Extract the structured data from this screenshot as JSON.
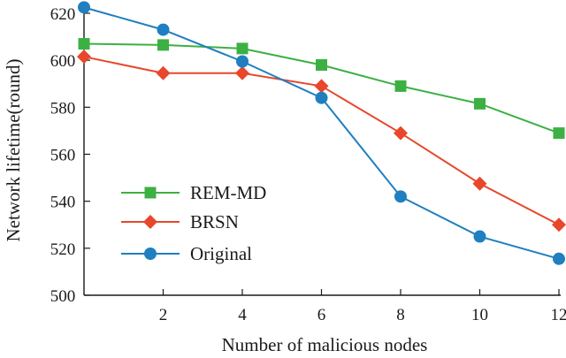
{
  "chart_data": {
    "type": "line",
    "xlabel": "Number of malicious nodes",
    "ylabel": "Network lifetime(round)",
    "xlim": [
      0,
      13
    ],
    "ylim": [
      500,
      620
    ],
    "xticks": [
      2,
      4,
      6,
      8,
      10,
      12
    ],
    "yticks": [
      500,
      520,
      540,
      560,
      580,
      600,
      620
    ],
    "legend_position": "lower-left",
    "grid": false,
    "series": [
      {
        "name": "REM-MD",
        "color": "#3cb043",
        "marker": "square",
        "x": [
          0,
          2,
          4,
          6,
          8,
          10,
          12
        ],
        "y": [
          607,
          606.5,
          605,
          598,
          589,
          581.5,
          569
        ]
      },
      {
        "name": "BRSN",
        "color": "#e8472b",
        "marker": "diamond",
        "x": [
          0,
          2,
          4,
          6,
          8,
          10,
          12
        ],
        "y": [
          601.5,
          594.5,
          594.5,
          589,
          569,
          547.5,
          530
        ]
      },
      {
        "name": "Original",
        "color": "#1f7fc0",
        "marker": "circle",
        "x": [
          0,
          2,
          4,
          6,
          8,
          10,
          12
        ],
        "y": [
          622.5,
          613,
          599.5,
          584,
          542,
          525,
          515.5
        ]
      }
    ]
  }
}
